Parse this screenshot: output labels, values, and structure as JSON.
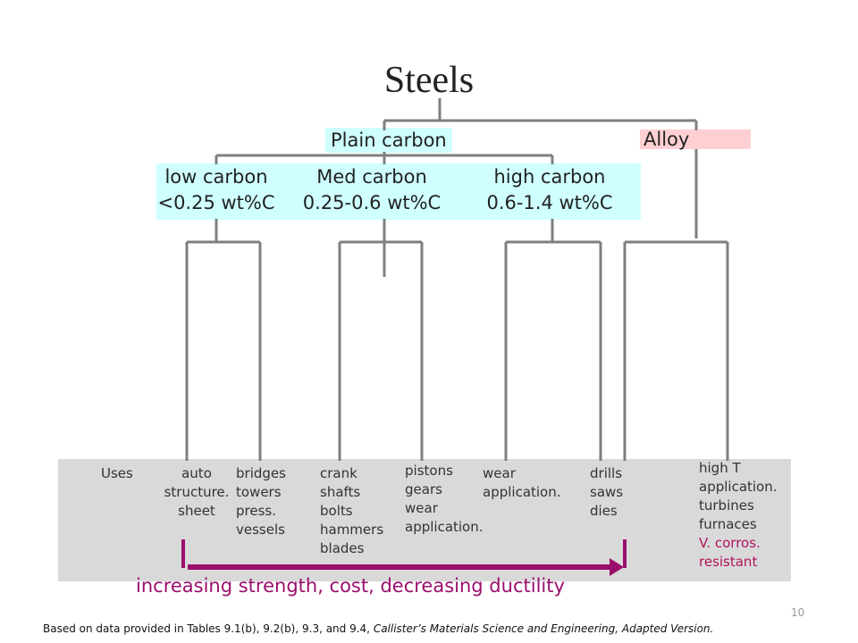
{
  "title": "Steels",
  "plain_carbon": "Plain carbon",
  "alloy": "Alloy",
  "categories": [
    {
      "name": "low carbon",
      "range": "<0.25 wt%C"
    },
    {
      "name": "Med carbon",
      "range": "0.25-0.6 wt%C"
    },
    {
      "name": "high carbon",
      "range": "0.6-1.4 wt%C"
    }
  ],
  "uses": {
    "label": "Uses",
    "auto": "auto\nstructure.\nsheet",
    "bridges": "bridges\ntowers\npress.\nvessels",
    "crank": "crank\nshafts\nbolts\nhammers\nblades",
    "pistons": "pistons\ngears\nwear\napplication.",
    "wear": "wear\napplication.",
    "drills": "drills\nsaws\ndies",
    "hight": "high T\napplication.\nturbines\nfurnaces",
    "corros": "V. corros.\nresistant"
  },
  "arrow_text": "increasing strength, cost, decreasing ductility",
  "footer_plain": "Based on data provided in Tables 9.1(b), 9.2(b), 9.3, and 9.4, ",
  "footer_italic": "Callister’s Materials Science and Engineering, Adapted Version.",
  "page_number": "10",
  "colors": {
    "plain": "#cfffff",
    "alloy": "#ffd0d3",
    "line": "#7f7f7f",
    "arrow": "#9b0f6c",
    "band": "#d9d9d9"
  }
}
